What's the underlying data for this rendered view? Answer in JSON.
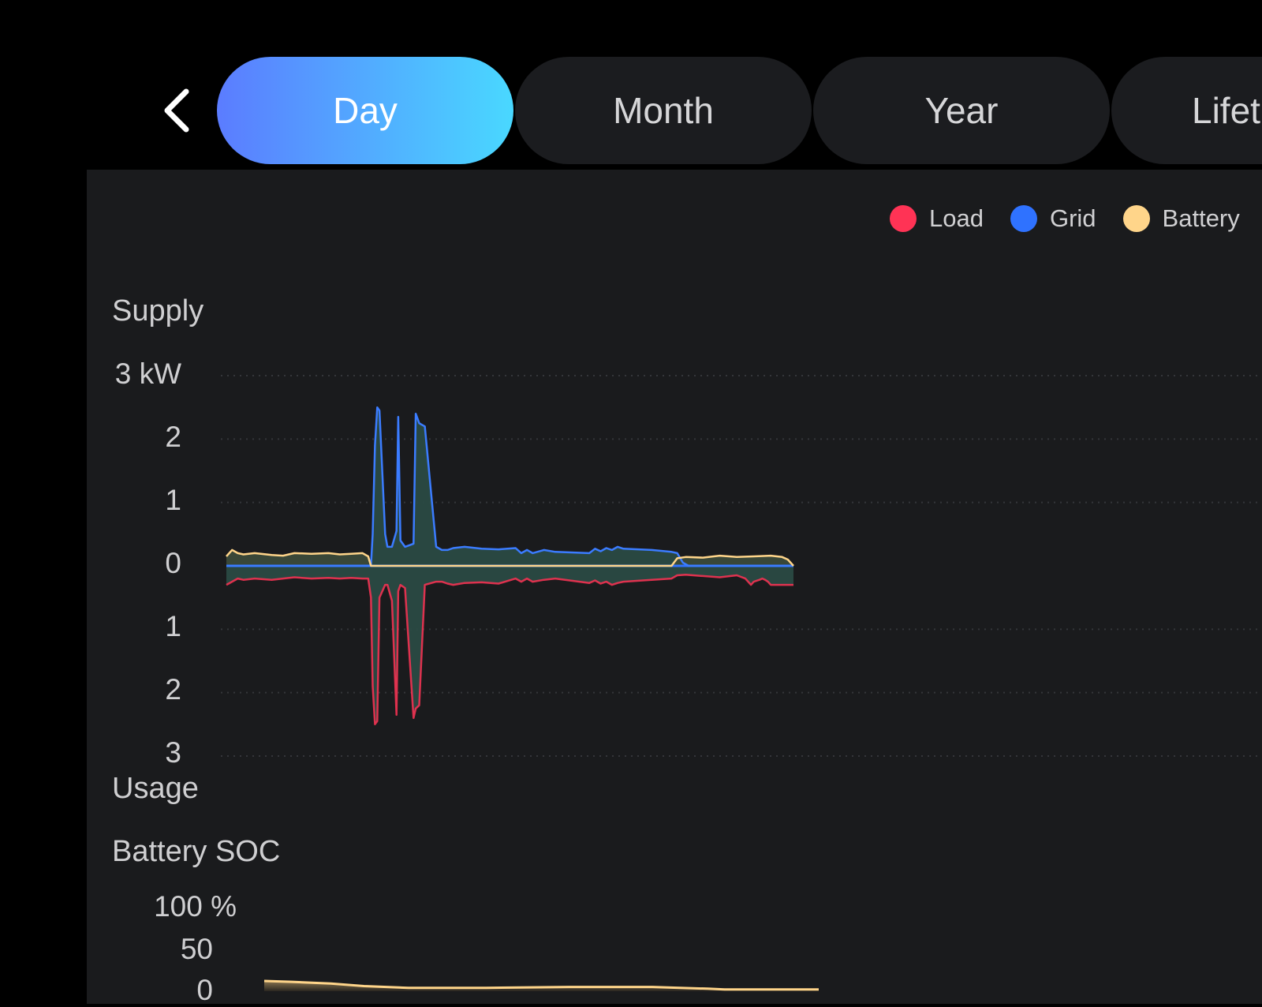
{
  "nav": {
    "back_icon": "chevron-left-icon",
    "tabs": [
      {
        "label": "Day",
        "active": true
      },
      {
        "label": "Month",
        "active": false
      },
      {
        "label": "Year",
        "active": false
      },
      {
        "label": "Lifet",
        "active": false
      }
    ]
  },
  "legend": [
    {
      "label": "Load",
      "color": "#ff3355"
    },
    {
      "label": "Grid",
      "color": "#2f72ff"
    },
    {
      "label": "Battery",
      "color": "#ffd58a"
    }
  ],
  "supply_label": "Supply",
  "usage_label": "Usage",
  "soc_label": "Battery SOC",
  "chart_data": [
    {
      "type": "area",
      "ylabel": "kW",
      "tick_labels": [
        "3 kW",
        "2",
        "1",
        "0",
        "1",
        "2",
        "3"
      ],
      "ylim": [
        -3,
        3
      ],
      "xlim": [
        0,
        100
      ],
      "grid": true,
      "legend_position": "top-right",
      "series": [
        {
          "name": "Grid",
          "color": "#2f72ff",
          "x": [
            0,
            25.5,
            25.8,
            26.2,
            26.6,
            27,
            28,
            28.4,
            29.2,
            30,
            30.3,
            30.7,
            31.5,
            33,
            33.4,
            34,
            35,
            37,
            38,
            39,
            40,
            42,
            45,
            48,
            51,
            52,
            53,
            54,
            56,
            58,
            64,
            65,
            66,
            67,
            68,
            69,
            70,
            75,
            78.5,
            79.5,
            80.5,
            81.5,
            82,
            83,
            84,
            85,
            86,
            87,
            88,
            89,
            90,
            91,
            91.5,
            92,
            92.5,
            93,
            94,
            94.5,
            95,
            95.5,
            96,
            96.8,
            97.2,
            97.8,
            98.2,
            98.8,
            99.4,
            100
          ],
          "values": [
            0,
            0,
            0.5,
            1.9,
            2.5,
            2.45,
            0.5,
            0.3,
            0.3,
            0.55,
            2.35,
            0.4,
            0.3,
            0.35,
            2.4,
            2.25,
            2.2,
            0.3,
            0.25,
            0.25,
            0.28,
            0.3,
            0.27,
            0.26,
            0.28,
            0.2,
            0.25,
            0.2,
            0.25,
            0.22,
            0.2,
            0.27,
            0.23,
            0.28,
            0.25,
            0.3,
            0.27,
            0.25,
            0.22,
            0.2,
            0.05,
            0,
            0,
            0,
            0,
            0,
            0,
            0,
            0,
            0,
            0,
            0,
            0,
            0,
            0,
            0,
            0,
            0,
            0,
            0,
            0,
            0,
            0,
            0,
            0,
            0,
            0,
            0
          ]
        },
        {
          "name": "Battery",
          "color": "#ffd58a",
          "x": [
            0,
            1,
            2,
            3,
            5,
            8,
            10,
            12,
            15,
            18,
            20,
            22,
            24,
            25,
            25.5,
            26,
            78.5,
            79.5,
            81,
            84,
            87,
            90,
            93,
            96,
            98,
            99,
            100
          ],
          "values": [
            0.15,
            0.25,
            0.2,
            0.18,
            0.2,
            0.17,
            0.16,
            0.2,
            0.19,
            0.2,
            0.18,
            0.19,
            0.2,
            0.15,
            0,
            0,
            0,
            0.12,
            0.14,
            0.13,
            0.16,
            0.14,
            0.15,
            0.16,
            0.14,
            0.1,
            0
          ]
        },
        {
          "name": "Load",
          "color": "#ff3355",
          "x": [
            0,
            1,
            2,
            3,
            5,
            8,
            10,
            12,
            15,
            18,
            20,
            22,
            24,
            25,
            25.5,
            25.8,
            26.2,
            26.6,
            27,
            28,
            28.4,
            29.2,
            30,
            30.3,
            30.7,
            31.5,
            33,
            33.4,
            34,
            35,
            37,
            38,
            39,
            40,
            42,
            45,
            48,
            51,
            52,
            53,
            54,
            56,
            58,
            64,
            65,
            66,
            67,
            68,
            69,
            70,
            75,
            78.5,
            79.5,
            81,
            84,
            87,
            90,
            91.5,
            92,
            92.5,
            93,
            94,
            94.5,
            95,
            95.5,
            96,
            96.8,
            97.2,
            97.8,
            98.2,
            98.8,
            99.4,
            100
          ],
          "values": [
            -0.3,
            -0.25,
            -0.2,
            -0.22,
            -0.2,
            -0.22,
            -0.2,
            -0.18,
            -0.2,
            -0.19,
            -0.2,
            -0.19,
            -0.2,
            -0.2,
            -0.5,
            -1.9,
            -2.5,
            -2.45,
            -0.5,
            -0.3,
            -0.3,
            -0.55,
            -2.35,
            -0.4,
            -0.3,
            -0.35,
            -2.4,
            -2.25,
            -2.2,
            -0.3,
            -0.25,
            -0.25,
            -0.28,
            -0.3,
            -0.27,
            -0.26,
            -0.28,
            -0.2,
            -0.25,
            -0.2,
            -0.25,
            -0.22,
            -0.2,
            -0.27,
            -0.23,
            -0.28,
            -0.25,
            -0.3,
            -0.27,
            -0.25,
            -0.22,
            -0.2,
            -0.15,
            -0.14,
            -0.16,
            -0.18,
            -0.15,
            -0.2,
            -0.25,
            -0.3,
            -0.25,
            -0.22,
            -0.2,
            -0.22,
            -0.25,
            -0.3,
            -0.3,
            -0.3,
            -0.3,
            -0.3,
            -0.3,
            -0.3,
            -0.3
          ]
        }
      ]
    },
    {
      "type": "area",
      "title": "Battery SOC",
      "tick_labels": [
        "100 %",
        "50",
        "0"
      ],
      "ylim": [
        0,
        100
      ],
      "xlim": [
        0,
        100
      ],
      "series": [
        {
          "name": "Battery",
          "color": "#ffd58a",
          "x": [
            0,
            5,
            12,
            18,
            26,
            40,
            55,
            70,
            80,
            83,
            90,
            100
          ],
          "values": [
            12,
            11,
            9,
            6,
            4,
            4,
            5,
            5,
            3,
            2,
            2,
            2
          ]
        }
      ]
    }
  ]
}
